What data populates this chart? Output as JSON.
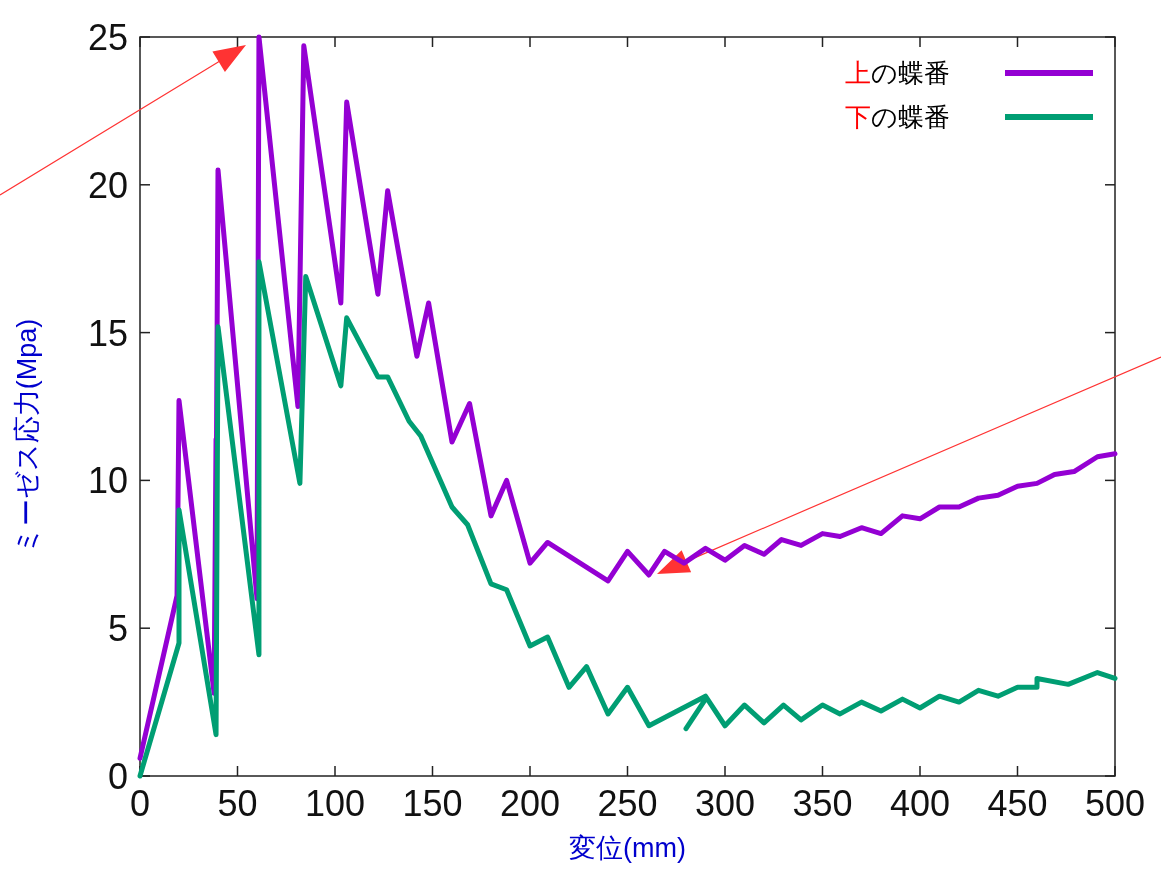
{
  "chart_data": {
    "type": "line",
    "xlabel": "変位(mm)",
    "ylabel": "ミーゼス応力(Mpa)",
    "xlim": [
      0,
      500
    ],
    "ylim": [
      0,
      25
    ],
    "xticks": [
      0,
      50,
      100,
      150,
      200,
      250,
      300,
      350,
      400,
      450,
      500
    ],
    "yticks": [
      0,
      5,
      10,
      15,
      20,
      25
    ],
    "legend": "top right",
    "series": [
      {
        "name": "上の蝶番",
        "color": "#9400d3",
        "x": [
          0,
          19,
          20,
          38,
          39,
          39,
          40,
          60,
          61,
          81,
          84,
          103,
          106,
          122,
          127,
          142,
          148,
          160,
          169,
          180,
          188,
          200,
          209,
          240,
          250,
          261,
          269,
          279,
          290,
          300,
          310,
          320,
          329,
          339,
          350,
          359,
          370,
          380,
          391,
          400,
          410,
          420,
          430,
          440,
          450,
          460,
          469,
          479,
          491,
          500
        ],
        "values": [
          0.6,
          6.1,
          12.7,
          2.8,
          11.4,
          8.5,
          20.5,
          6.0,
          25.0,
          12.5,
          24.7,
          16.0,
          22.8,
          16.3,
          19.8,
          14.2,
          16.0,
          11.3,
          12.6,
          8.8,
          10.0,
          7.2,
          7.9,
          6.6,
          7.6,
          6.8,
          7.6,
          7.2,
          7.7,
          7.3,
          7.8,
          7.5,
          8.0,
          7.8,
          8.2,
          8.1,
          8.4,
          8.2,
          8.8,
          8.7,
          9.1,
          9.1,
          9.4,
          9.5,
          9.8,
          9.9,
          10.2,
          10.3,
          10.8,
          10.9
        ]
      },
      {
        "name": "下の蝶番",
        "color": "#009e73",
        "x": [
          0,
          20,
          20,
          39,
          40,
          61,
          61,
          82,
          85,
          103,
          106,
          122,
          127,
          138,
          144,
          160,
          168,
          180,
          188,
          200,
          209,
          220,
          229,
          240,
          250,
          261,
          290,
          300,
          310,
          320,
          330,
          339,
          350,
          359,
          370,
          380,
          391,
          400,
          410,
          420,
          430,
          440,
          450,
          460,
          460,
          476,
          491,
          500,
          null,
          280,
          290
        ],
        "values": [
          0,
          4.5,
          9.0,
          1.4,
          15.2,
          4.1,
          17.4,
          9.9,
          16.9,
          13.2,
          15.5,
          13.5,
          13.5,
          12.0,
          11.5,
          9.1,
          8.5,
          6.5,
          6.3,
          4.4,
          4.7,
          3.0,
          3.7,
          2.1,
          3.0,
          1.7,
          2.7,
          1.7,
          2.4,
          1.8,
          2.4,
          1.9,
          2.4,
          2.1,
          2.5,
          2.2,
          2.6,
          2.3,
          2.7,
          2.5,
          2.9,
          2.7,
          3.0,
          3.0,
          3.3,
          3.1,
          3.5,
          3.3,
          null,
          1.6,
          2.6
        ]
      }
    ]
  }
}
